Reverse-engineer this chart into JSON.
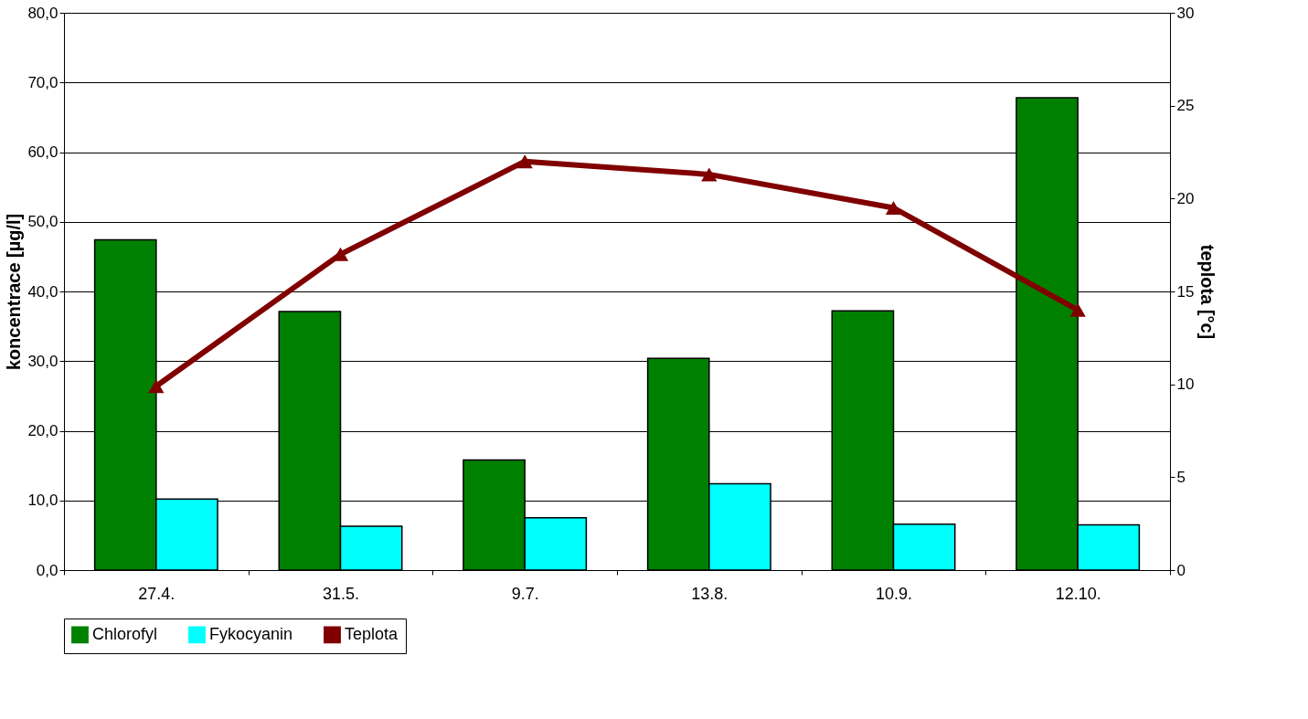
{
  "chart_data": {
    "type": "bar",
    "categories": [
      "27.4.",
      "31.5.",
      "9.7.",
      "13.8.",
      "10.9.",
      "12.10."
    ],
    "series": [
      {
        "name": "Chlorofyl",
        "color": "#008000",
        "values": [
          47.4,
          37.1,
          15.8,
          30.4,
          37.2,
          67.8
        ]
      },
      {
        "name": "Fykocyanin",
        "color": "#00ffff",
        "values": [
          10.2,
          6.3,
          7.5,
          12.4,
          6.6,
          6.5
        ]
      },
      {
        "name": "Teplota",
        "color": "#800000",
        "type": "line",
        "axis": "y2",
        "marker": "triangle",
        "values": [
          9.9,
          17.0,
          22.0,
          21.3,
          19.5,
          14.0
        ]
      }
    ],
    "ylabel": "koncentrace  [µg/l]",
    "y2label": "teplota  [°c]",
    "ylim": [
      0,
      80
    ],
    "yticks": [
      {
        "value": 0,
        "label": "0,0"
      },
      {
        "value": 10,
        "label": "10,0"
      },
      {
        "value": 20,
        "label": "20,0"
      },
      {
        "value": 30,
        "label": "30,0"
      },
      {
        "value": 40,
        "label": "40,0"
      },
      {
        "value": 50,
        "label": "50,0"
      },
      {
        "value": 60,
        "label": "60,0"
      },
      {
        "value": 70,
        "label": "70,0"
      },
      {
        "value": 80,
        "label": "80,0"
      }
    ],
    "y2lim": [
      0,
      30
    ],
    "y2ticks": [
      0,
      5,
      10,
      15,
      20,
      25,
      30
    ],
    "grid": "y",
    "legend": "bottom"
  }
}
